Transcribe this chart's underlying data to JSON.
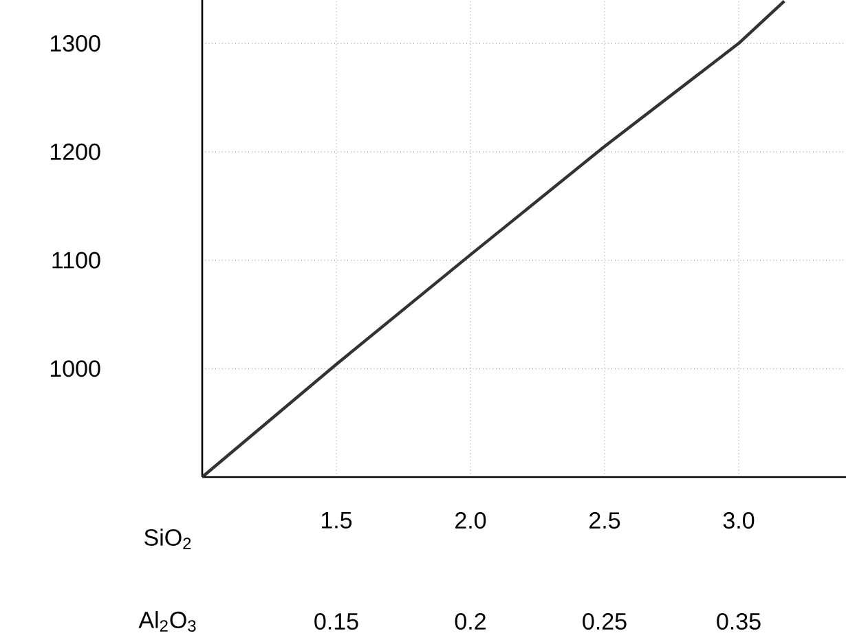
{
  "chart_data": {
    "type": "line",
    "xlabel": "SiO$_{2}$",
    "x": [
      1.0,
      1.5,
      2.0,
      2.5,
      3.0,
      3.17
    ],
    "series": [
      {
        "color": "#333333",
        "values": [
          900,
          1004,
          1105,
          1205,
          1300,
          1339
        ]
      }
    ],
    "xlim": [
      1.0,
      3.4
    ],
    "xticks": [
      {
        "value": 1.5,
        "label": "1.5"
      },
      {
        "value": 2.0,
        "label": "2.0"
      },
      {
        "value": 2.5,
        "label": "2.5"
      },
      {
        "value": 3.0,
        "label": "3.0"
      }
    ],
    "ylim": [
      900,
      1340
    ],
    "yticks": [
      1000,
      1100,
      1200,
      1300
    ],
    "annotations": [
      "Al$_{2}$O$_{3}$",
      "0.15",
      "0.2",
      "0.25",
      "0.35"
    ],
    "grid": true,
    "marker": "none",
    "line_style": "solid"
  }
}
